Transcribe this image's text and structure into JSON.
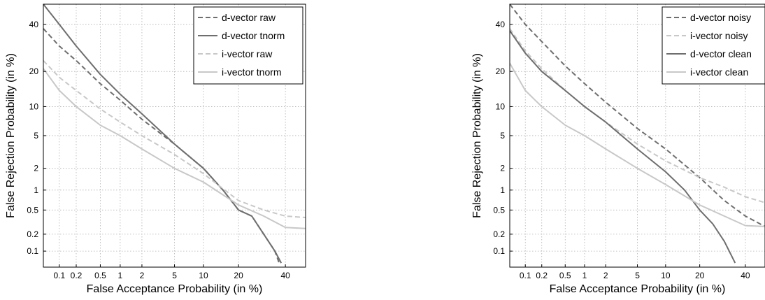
{
  "chart_data": [
    {
      "type": "line",
      "xlabel": "False Acceptance Probability (in %)",
      "ylabel": "False Rejection Probability (in %)",
      "xscale": "probit",
      "yscale": "probit",
      "xlim": [
        0.05,
        50
      ],
      "ylim": [
        0.05,
        50
      ],
      "xticks": [
        "0.1",
        "0.2",
        "0.5",
        "1",
        "2",
        "5",
        "10",
        "20",
        "40"
      ],
      "yticks": [
        "0.1",
        "0.2",
        "0.5",
        "1",
        "2",
        "5",
        "10",
        "20",
        "40"
      ],
      "grid": true,
      "legend": "top-right",
      "series": [
        {
          "name": "d-vector raw",
          "color": "#6e6e6e",
          "dash": "dashed",
          "x": [
            0.05,
            0.1,
            0.2,
            0.5,
            1,
            2,
            5,
            10,
            15,
            20,
            25,
            30,
            35,
            37
          ],
          "y": [
            38,
            30,
            24,
            16,
            11.5,
            7.5,
            4,
            2.0,
            1.0,
            0.5,
            0.4,
            0.2,
            0.1,
            0.06
          ]
        },
        {
          "name": "d-vector tnorm",
          "color": "#6e6e6e",
          "dash": "solid",
          "x": [
            0.05,
            0.1,
            0.2,
            0.5,
            1,
            2,
            5,
            10,
            15,
            20,
            25,
            30,
            35,
            38
          ],
          "y": [
            50,
            40,
            30,
            19,
            13,
            8.5,
            4,
            2.0,
            1.0,
            0.5,
            0.4,
            0.2,
            0.1,
            0.06
          ]
        },
        {
          "name": "i-vector raw",
          "color": "#c8c8c8",
          "dash": "dashed",
          "x": [
            0.05,
            0.1,
            0.2,
            0.5,
            1,
            2,
            5,
            10,
            20,
            30,
            40,
            50
          ],
          "y": [
            24,
            18,
            14,
            9.5,
            7,
            5,
            3,
            1.7,
            0.7,
            0.5,
            0.4,
            0.38
          ]
        },
        {
          "name": "i-vector tnorm",
          "color": "#c8c8c8",
          "dash": "solid",
          "x": [
            0.05,
            0.1,
            0.2,
            0.5,
            1,
            2,
            5,
            10,
            20,
            30,
            40,
            50
          ],
          "y": [
            21,
            14,
            10,
            6.5,
            5,
            3.5,
            2,
            1.3,
            0.6,
            0.4,
            0.26,
            0.25
          ]
        }
      ]
    },
    {
      "type": "line",
      "xlabel": "False Acceptance Probability (in %)",
      "ylabel": "False Rejection Probability (in %)",
      "xscale": "probit",
      "yscale": "probit",
      "xlim": [
        0.05,
        50
      ],
      "ylim": [
        0.05,
        50
      ],
      "xticks": [
        "0.1",
        "0.2",
        "0.5",
        "1",
        "2",
        "5",
        "10",
        "20",
        "40"
      ],
      "yticks": [
        "0.1",
        "0.2",
        "0.5",
        "1",
        "2",
        "5",
        "10",
        "20",
        "40"
      ],
      "grid": true,
      "legend": "top-right",
      "series": [
        {
          "name": "d-vector noisy",
          "color": "#6e6e6e",
          "dash": "dashed",
          "x": [
            0.05,
            0.1,
            0.2,
            0.5,
            1,
            2,
            5,
            10,
            20,
            30,
            40,
            50
          ],
          "y": [
            50,
            40,
            32,
            22,
            16,
            11,
            6,
            3.5,
            1.5,
            0.7,
            0.4,
            0.27
          ]
        },
        {
          "name": "i-vector noisy",
          "color": "#c8c8c8",
          "dash": "dashed",
          "x": [
            0.05,
            0.1,
            0.2,
            0.5,
            1,
            2,
            5,
            10,
            20,
            30,
            40,
            50
          ],
          "y": [
            38,
            28,
            21,
            14,
            10,
            7,
            4,
            2.5,
            1.5,
            1.1,
            0.8,
            0.65
          ]
        },
        {
          "name": "d-vector clean",
          "color": "#6e6e6e",
          "dash": "solid",
          "x": [
            0.05,
            0.1,
            0.2,
            0.5,
            1,
            2,
            5,
            10,
            15,
            20,
            25,
            30,
            35
          ],
          "y": [
            37,
            27,
            20,
            14,
            10,
            7,
            3.5,
            1.8,
            1.0,
            0.5,
            0.3,
            0.15,
            0.06
          ]
        },
        {
          "name": "i-vector clean",
          "color": "#c8c8c8",
          "dash": "solid",
          "x": [
            0.05,
            0.1,
            0.2,
            0.5,
            1,
            2,
            5,
            10,
            20,
            30,
            40,
            50
          ],
          "y": [
            23,
            14,
            10,
            6.5,
            5,
            3.5,
            2,
            1.2,
            0.6,
            0.4,
            0.28,
            0.27
          ]
        }
      ]
    }
  ]
}
